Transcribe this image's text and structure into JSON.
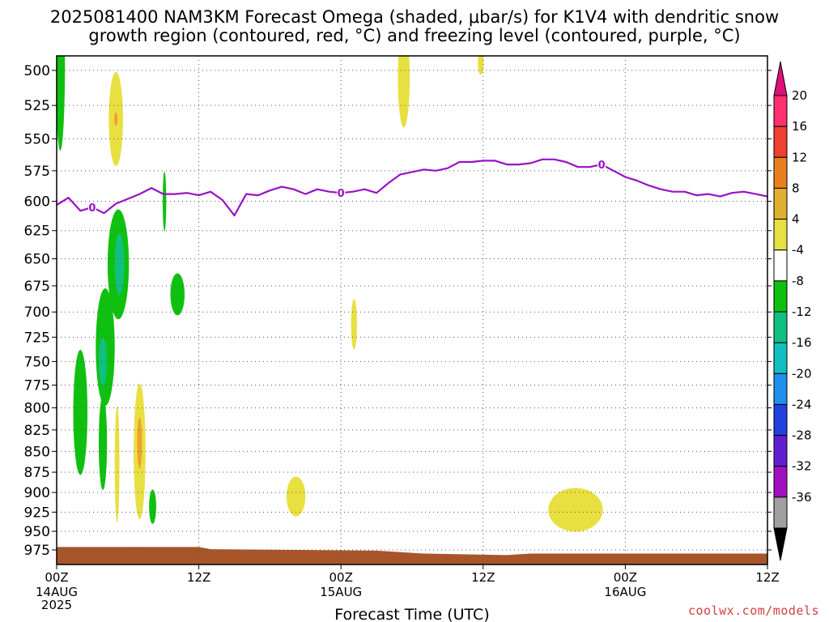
{
  "title_line1": "2025081400 NAM3KM Forecast Omega (shaded, μbar/s) for K1V4 with dendritic snow",
  "title_line2": "growth region (contoured, red, °C) and freezing level (contoured, purple, °C)",
  "credit": "coolwx.com/models",
  "chart_data": {
    "type": "time-height contour",
    "xlabel": "Forecast Time (UTC)",
    "ylabel": "",
    "x_range_hours": [
      0,
      60
    ],
    "y_range_hPa": [
      490,
      995
    ],
    "y_scale": "log-pressure",
    "x_ticks": [
      {
        "hour": 0,
        "label": "00Z",
        "sub": [
          "14AUG",
          "2025"
        ]
      },
      {
        "hour": 12,
        "label": "12Z",
        "sub": []
      },
      {
        "hour": 24,
        "label": "00Z",
        "sub": [
          "15AUG"
        ]
      },
      {
        "hour": 36,
        "label": "12Z",
        "sub": []
      },
      {
        "hour": 48,
        "label": "00Z",
        "sub": [
          "16AUG"
        ]
      },
      {
        "hour": 60,
        "label": "12Z",
        "sub": []
      }
    ],
    "y_ticks": [
      500,
      525,
      550,
      575,
      600,
      625,
      650,
      675,
      700,
      725,
      750,
      775,
      800,
      825,
      850,
      875,
      900,
      925,
      950,
      975
    ],
    "grid": true,
    "colorbar": {
      "labels": [
        "20",
        "16",
        "12",
        "8",
        "4",
        "-4",
        "-8",
        "-12",
        "-16",
        "-20",
        "-24",
        "-28",
        "-32",
        "-36"
      ],
      "colors": [
        "#ff3070",
        "#f04030",
        "#e88020",
        "#e0b030",
        "#e8e040",
        "#ffffff",
        "#10c010",
        "#10c080",
        "#10c0c0",
        "#2090f0",
        "#2040e0",
        "#6020d0",
        "#a010c0",
        "#a0a0a0"
      ],
      "top_arrow_color": "#e0107a",
      "bottom_arrow_color": "#000000"
    },
    "freezing_level": {
      "color": "#9a10c8",
      "label": "0",
      "label_hours": [
        3,
        24,
        46
      ],
      "points": [
        [
          0,
          603
        ],
        [
          1,
          597
        ],
        [
          2,
          608
        ],
        [
          3,
          605
        ],
        [
          4,
          610
        ],
        [
          5,
          602
        ],
        [
          6,
          598
        ],
        [
          7,
          594
        ],
        [
          8,
          589
        ],
        [
          9,
          594
        ],
        [
          10,
          594
        ],
        [
          11,
          593
        ],
        [
          12,
          595
        ],
        [
          13,
          592
        ],
        [
          14,
          599
        ],
        [
          15,
          612
        ],
        [
          16,
          594
        ],
        [
          17,
          595
        ],
        [
          18,
          591
        ],
        [
          19,
          588
        ],
        [
          20,
          590
        ],
        [
          21,
          594
        ],
        [
          22,
          590
        ],
        [
          23,
          592
        ],
        [
          24,
          593
        ],
        [
          25,
          592
        ],
        [
          26,
          590
        ],
        [
          27,
          593
        ],
        [
          28,
          585
        ],
        [
          29,
          578
        ],
        [
          30,
          576
        ],
        [
          31,
          574
        ],
        [
          32,
          575
        ],
        [
          33,
          573
        ],
        [
          34,
          568
        ],
        [
          35,
          568
        ],
        [
          36,
          567
        ],
        [
          37,
          567
        ],
        [
          38,
          570
        ],
        [
          39,
          570
        ],
        [
          40,
          569
        ],
        [
          41,
          566
        ],
        [
          42,
          566
        ],
        [
          43,
          568
        ],
        [
          44,
          572
        ],
        [
          45,
          572
        ],
        [
          46,
          570
        ],
        [
          47,
          575
        ],
        [
          48,
          580
        ],
        [
          49,
          583
        ],
        [
          50,
          587
        ],
        [
          51,
          590
        ],
        [
          52,
          592
        ],
        [
          53,
          592
        ],
        [
          54,
          595
        ],
        [
          55,
          594
        ],
        [
          56,
          596
        ],
        [
          57,
          593
        ],
        [
          58,
          592
        ],
        [
          59,
          594
        ],
        [
          60,
          596
        ]
      ]
    },
    "terrain": {
      "color": "#a8552a",
      "points": [
        [
          0,
          971
        ],
        [
          12,
          971
        ],
        [
          13,
          974
        ],
        [
          20,
          975
        ],
        [
          27,
          976
        ],
        [
          31,
          980
        ],
        [
          38,
          982
        ],
        [
          40,
          980
        ],
        [
          60,
          980
        ]
      ]
    },
    "omega_regions": [
      {
        "color": "#10c010",
        "c": [
          0.3,
          495
        ],
        "dt": 0.4,
        "dp": 60
      },
      {
        "color": "#e8e040",
        "c": [
          5,
          535
        ],
        "dt": 0.6,
        "dp": 35
      },
      {
        "color": "#f0a030",
        "c": [
          5,
          535
        ],
        "dt": 0.15,
        "dp": 5
      },
      {
        "color": "#e8e040",
        "c": [
          29.3,
          505
        ],
        "dt": 0.5,
        "dp": 35
      },
      {
        "color": "#e8e040",
        "c": [
          35.8,
          495
        ],
        "dt": 0.25,
        "dp": 8
      },
      {
        "color": "#10c010",
        "c": [
          9.1,
          600
        ],
        "dt": 0.15,
        "dp": 25
      },
      {
        "color": "#10c010",
        "c": [
          5.2,
          655
        ],
        "dt": 0.9,
        "dp": 50
      },
      {
        "color": "#10c080",
        "c": [
          5.3,
          655
        ],
        "dt": 0.4,
        "dp": 28
      },
      {
        "color": "#10c010",
        "c": [
          4.1,
          735
        ],
        "dt": 0.8,
        "dp": 60
      },
      {
        "color": "#10c080",
        "c": [
          3.9,
          750
        ],
        "dt": 0.35,
        "dp": 25
      },
      {
        "color": "#10c010",
        "c": [
          3.9,
          840
        ],
        "dt": 0.35,
        "dp": 55
      },
      {
        "color": "#10c010",
        "c": [
          2,
          805
        ],
        "dt": 0.6,
        "dp": 70
      },
      {
        "color": "#10c010",
        "c": [
          10.2,
          683
        ],
        "dt": 0.6,
        "dp": 20
      },
      {
        "color": "#e8e040",
        "c": [
          5.1,
          865
        ],
        "dt": 0.2,
        "dp": 70
      },
      {
        "color": "#e8e040",
        "c": [
          7,
          850
        ],
        "dt": 0.5,
        "dp": 80
      },
      {
        "color": "#f0a030",
        "c": [
          7,
          840
        ],
        "dt": 0.2,
        "dp": 30
      },
      {
        "color": "#10c010",
        "c": [
          8.1,
          918
        ],
        "dt": 0.3,
        "dp": 22
      },
      {
        "color": "#e8e040",
        "c": [
          20.2,
          905
        ],
        "dt": 0.8,
        "dp": 25
      },
      {
        "color": "#e8e040",
        "c": [
          25.1,
          712
        ],
        "dt": 0.25,
        "dp": 25
      },
      {
        "color": "#e8e040",
        "c": [
          43.8,
          922
        ],
        "dt": 2.3,
        "dp": 28
      }
    ]
  }
}
